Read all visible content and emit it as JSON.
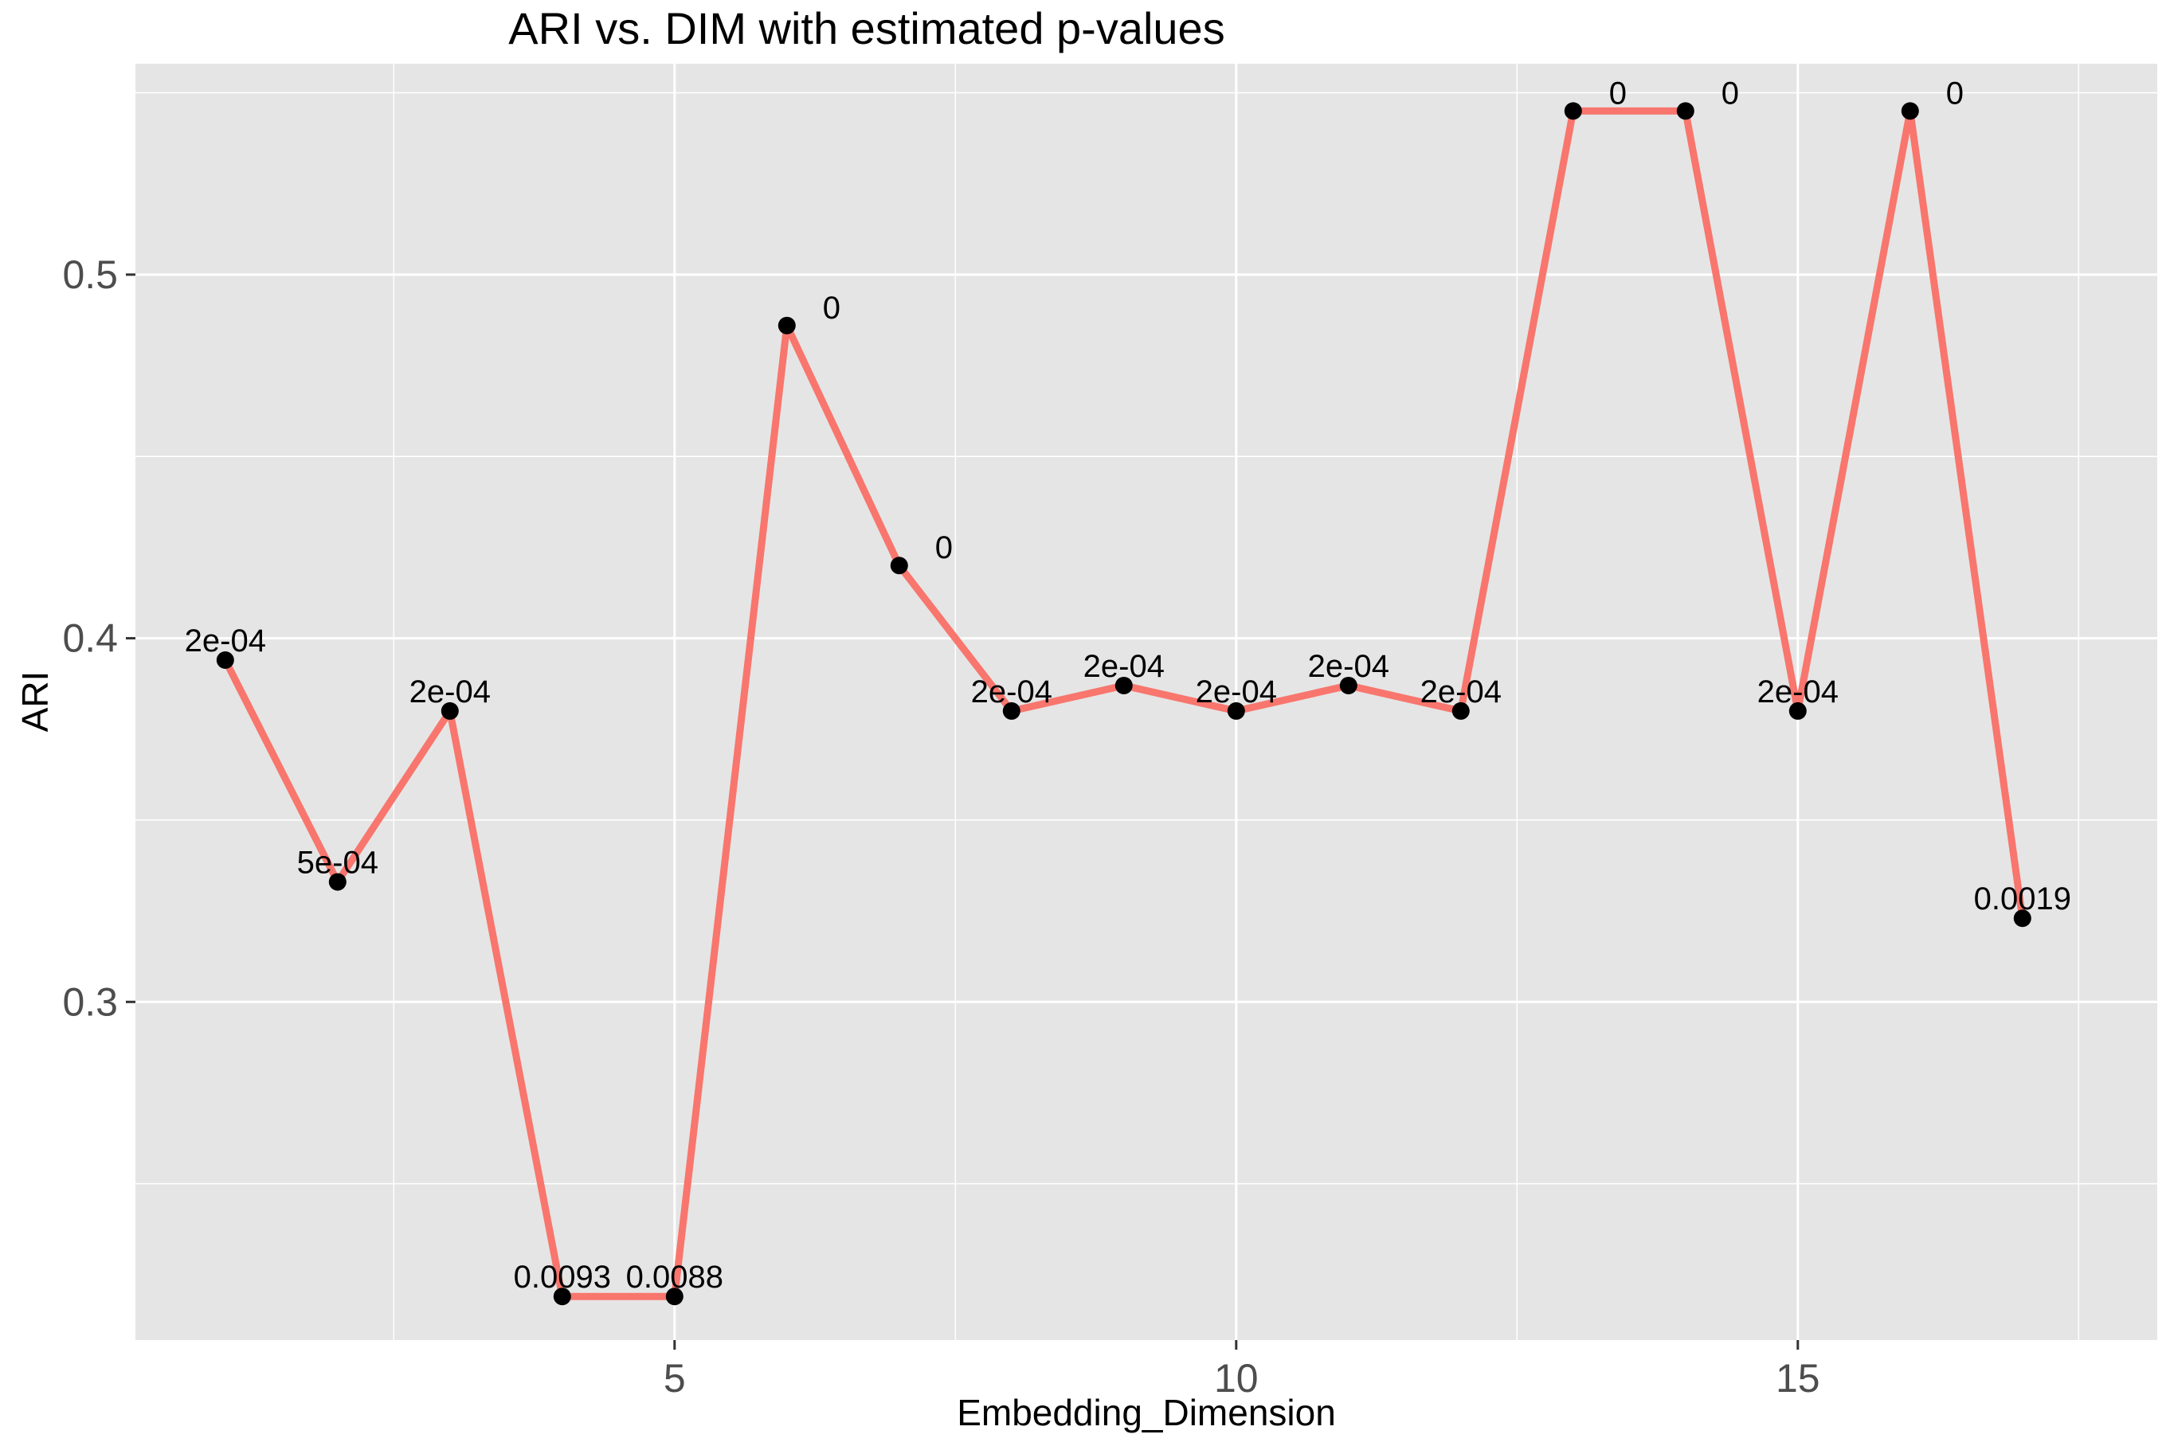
{
  "chart_data": {
    "type": "line",
    "title": "ARI vs. DIM with estimated p-values",
    "xlabel": "Embedding_Dimension",
    "ylabel": "ARI",
    "xlim": [
      0.2,
      18.2
    ],
    "ylim": [
      0.207,
      0.558
    ],
    "x_ticks": [
      5,
      10,
      15
    ],
    "x_tick_labels": [
      "5",
      "10",
      "15"
    ],
    "y_ticks": [
      0.3,
      0.4,
      0.5
    ],
    "y_tick_labels": [
      "0.3",
      "0.4",
      "0.5"
    ],
    "grid": true,
    "legend": "none",
    "line_color": "#F8766D",
    "point_color": "#000000",
    "panel_background": "#E5E5E5",
    "series": [
      {
        "x": [
          1,
          2,
          3,
          4,
          5,
          6,
          7,
          8,
          9,
          10,
          11,
          12,
          13,
          14,
          15,
          16,
          17
        ],
        "y": [
          0.394,
          0.333,
          0.38,
          0.219,
          0.219,
          0.486,
          0.42,
          0.38,
          0.387,
          0.38,
          0.387,
          0.38,
          0.545,
          0.545,
          0.38,
          0.545,
          0.323
        ],
        "labels": [
          "2e-04",
          "5e-04",
          "2e-04",
          "0.0093",
          "0.0088",
          "0",
          "0",
          "2e-04",
          "2e-04",
          "2e-04",
          "2e-04",
          "2e-04",
          "0",
          "0",
          "2e-04",
          "0",
          "0.0019"
        ]
      }
    ]
  }
}
